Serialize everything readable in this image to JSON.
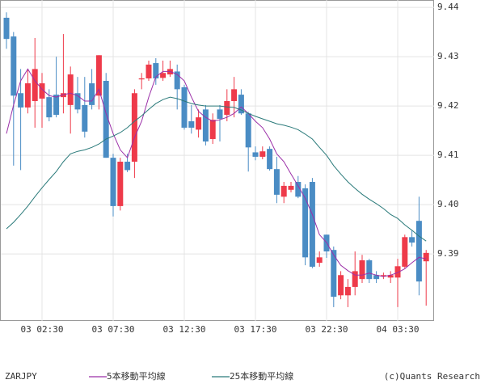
{
  "chart_data": {
    "type": "candlestick",
    "title": "ZARJPY",
    "credit": "(c)Quants Research",
    "categories": [
      null,
      null,
      null,
      null,
      null,
      "03 02:30",
      null,
      null,
      null,
      null,
      null,
      null,
      null,
      null,
      null,
      "03 07:30",
      null,
      null,
      null,
      null,
      null,
      null,
      null,
      null,
      null,
      "03 12:30",
      null,
      null,
      null,
      null,
      null,
      null,
      null,
      null,
      null,
      "03 17:30",
      null,
      null,
      null,
      null,
      null,
      null,
      null,
      null,
      null,
      "03 22:30",
      null,
      null,
      null,
      null,
      null,
      null,
      null,
      null,
      null,
      "04 03:30",
      null,
      null,
      null,
      null
    ],
    "open": [
      9.4379,
      9.4341,
      9.4226,
      9.4197,
      9.421,
      9.4215,
      9.4218,
      9.4223,
      9.4218,
      9.4202,
      9.4226,
      9.4202,
      9.4246,
      9.4221,
      9.4251,
      9.4095,
      9.3997,
      9.4087,
      9.4087,
      9.4254,
      9.4256,
      9.4287,
      9.4257,
      9.4264,
      9.427,
      9.4238,
      9.4169,
      9.4152,
      9.4193,
      9.4133,
      9.4193,
      9.4182,
      9.421,
      9.4223,
      9.4185,
      9.4106,
      9.4097,
      9.4113,
      9.4072,
      9.4016,
      9.403,
      9.4046,
      9.4033,
      9.4046,
      9.3882,
      9.3939,
      9.3908,
      9.3816,
      9.3816,
      9.3833,
      9.3849,
      9.3887,
      9.3857,
      9.3854,
      9.3852,
      9.3852,
      9.3874,
      9.3934,
      9.3967,
      9.3885
    ],
    "high": [
      9.439,
      9.435,
      9.4275,
      9.4275,
      9.4338,
      9.4267,
      9.4234,
      9.43,
      9.4346,
      9.428,
      9.4259,
      9.4259,
      9.4275,
      9.4303,
      9.4267,
      9.4103,
      9.4095,
      9.4103,
      9.4234,
      9.4267,
      9.4292,
      9.4297,
      9.4292,
      9.4292,
      9.4284,
      9.4243,
      9.4202,
      9.4193,
      9.4202,
      9.4185,
      9.4202,
      9.4234,
      9.4259,
      9.4234,
      9.4188,
      9.4118,
      9.4118,
      9.4118,
      9.4097,
      9.4046,
      9.4046,
      9.4058,
      9.4041,
      9.4054,
      9.3905,
      9.3939,
      9.3915,
      9.3865,
      9.3849,
      9.3905,
      9.3898,
      9.389,
      9.3865,
      9.3862,
      9.3865,
      9.389,
      9.3939,
      9.3947,
      9.4016,
      9.3908
    ],
    "low": [
      9.4316,
      9.4079,
      9.407,
      9.4185,
      9.4156,
      9.4156,
      9.4169,
      9.4177,
      9.4185,
      9.4144,
      9.4185,
      9.4136,
      9.4193,
      9.4193,
      9.4095,
      9.3976,
      9.3988,
      9.4066,
      9.4054,
      9.4234,
      9.4251,
      9.4243,
      9.4251,
      9.4259,
      9.4193,
      9.4152,
      9.4144,
      9.4136,
      9.412,
      9.4123,
      9.4128,
      9.4169,
      9.4177,
      9.4182,
      9.4067,
      9.409,
      9.4092,
      9.4069,
      9.4003,
      9.4003,
      9.4025,
      9.4013,
      9.3877,
      9.3871,
      9.3874,
      9.3892,
      9.3792,
      9.3808,
      9.3792,
      9.3816,
      9.3841,
      9.3841,
      9.3841,
      9.3849,
      9.3841,
      9.3792,
      9.3871,
      9.3915,
      9.3816,
      9.3795
    ],
    "close": [
      9.4336,
      9.4221,
      9.4197,
      9.4246,
      9.4275,
      9.4246,
      9.4177,
      9.4182,
      9.4226,
      9.4264,
      9.4193,
      9.4148,
      9.4202,
      9.4303,
      9.4095,
      9.3997,
      9.4087,
      9.407,
      9.4226,
      9.4256,
      9.4284,
      9.4256,
      9.4267,
      9.4275,
      9.4234,
      9.4156,
      9.4156,
      9.4177,
      9.4128,
      9.4172,
      9.4174,
      9.421,
      9.4234,
      9.4185,
      9.4116,
      9.4097,
      9.4108,
      9.4072,
      9.402,
      9.4038,
      9.4038,
      9.4016,
      9.3893,
      9.3874,
      9.3893,
      9.3905,
      9.3813,
      9.3857,
      9.3833,
      9.3865,
      9.3887,
      9.3849,
      9.3849,
      9.3857,
      9.3857,
      9.3875,
      9.3934,
      9.3923,
      9.3844,
      9.3902
    ],
    "up_color": "#ee3a4a",
    "down_color": "#4a8cc4",
    "series": [
      {
        "name": "5本移動平均線",
        "color": "#9b2fa8",
        "values": [
          9.4144,
          9.4202,
          9.4251,
          9.4275,
          9.4251,
          9.4234,
          9.4221,
          9.4218,
          9.4223,
          9.4226,
          9.4221,
          9.421,
          9.421,
          9.4234,
          9.4185,
          9.4144,
          9.4111,
          9.4095,
          9.4136,
          9.4169,
          9.4218,
          9.4259,
          9.427,
          9.427,
          9.4264,
          9.4251,
          9.4218,
          9.4189,
          9.4177,
          9.4169,
          9.4172,
          9.4177,
          9.4185,
          9.4198,
          9.4185,
          9.4169,
          9.4156,
          9.4133,
          9.4103,
          9.4087,
          9.4062,
          9.4038,
          9.4013,
          9.398,
          9.3939,
          9.3923,
          9.3898,
          9.3877,
          9.3866,
          9.3857,
          9.3857,
          9.3861,
          9.3857,
          9.3854,
          9.3857,
          9.3862,
          9.387,
          9.3882,
          9.3893,
          9.389
        ]
      },
      {
        "name": "25本移動平均線",
        "color": "#2a7a7a",
        "values": [
          9.3951,
          9.3964,
          9.398,
          9.3997,
          9.4016,
          9.4034,
          9.4051,
          9.4067,
          9.4087,
          9.4103,
          9.4108,
          9.4111,
          9.4116,
          9.4123,
          9.4133,
          9.4139,
          9.4146,
          9.4156,
          9.4169,
          9.418,
          9.4193,
          9.4205,
          9.4213,
          9.4218,
          9.4215,
          9.421,
          9.4205,
          9.4202,
          9.42,
          9.42,
          9.42,
          9.4198,
          9.4197,
          9.4192,
          9.4185,
          9.4179,
          9.4174,
          9.4169,
          9.4164,
          9.4161,
          9.4157,
          9.4152,
          9.4143,
          9.4133,
          9.4116,
          9.41,
          9.4079,
          9.4062,
          9.4046,
          9.4033,
          9.4021,
          9.4011,
          9.4002,
          9.3992,
          9.398,
          9.3972,
          9.3959,
          9.3948,
          9.3936,
          9.3926
        ]
      }
    ],
    "ylim": [
      9.3764,
      9.4415
    ],
    "yticks": [
      9.44,
      9.43,
      9.42,
      9.41,
      {
        "value": 9.4,
        "label": "9.40"
      },
      9.39
    ],
    "grid": true
  }
}
